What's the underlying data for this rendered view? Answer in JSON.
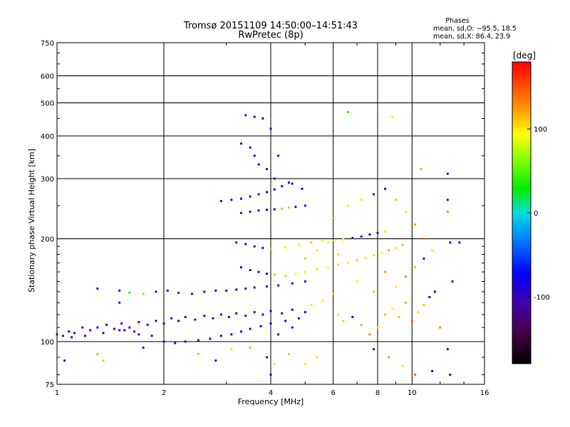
{
  "chart_data": {
    "type": "scatter",
    "title": "Tromsø 20151109 14:50:00–14:51:43",
    "subtitle": "RwPretec (8p)",
    "stats_title": "Phases",
    "stats_line1": "mean, sd,O: −95.5, 18.5",
    "stats_line2": "mean, sd,X:  86.4, 23.9",
    "xlabel": "Frequency [MHz]",
    "ylabel": "Stationary phase Virtual Height [km]",
    "x_scale": "log",
    "y_scale": "log",
    "xlim": [
      1,
      16
    ],
    "ylim": [
      75,
      750
    ],
    "x_ticks": [
      1,
      2,
      4,
      6,
      8,
      10,
      16
    ],
    "y_ticks": [
      75,
      100,
      200,
      300,
      400,
      500,
      600,
      750
    ],
    "grid": true,
    "colorbar": {
      "label": "[deg]",
      "range": [
        -180,
        180
      ],
      "ticks": [
        -100,
        0,
        100
      ]
    },
    "series": [
      {
        "trace": "ordinary_lower",
        "points": [
          [
            1.0,
            105,
            -110
          ],
          [
            1.04,
            104,
            -112
          ],
          [
            1.08,
            107,
            -105
          ],
          [
            1.12,
            106,
            -108
          ],
          [
            1.18,
            110,
            -100
          ],
          [
            1.24,
            108,
            -106
          ],
          [
            1.3,
            110,
            -104
          ],
          [
            1.38,
            112,
            -110
          ],
          [
            1.45,
            109,
            -103
          ],
          [
            1.52,
            113,
            -101
          ],
          [
            1.6,
            110,
            -99
          ],
          [
            1.7,
            114,
            -105
          ],
          [
            1.8,
            112,
            -100
          ],
          [
            1.9,
            115,
            -108
          ],
          [
            2.0,
            113,
            -102
          ],
          [
            2.1,
            117,
            -96
          ],
          [
            2.2,
            115,
            -104
          ],
          [
            2.3,
            118,
            -100
          ],
          [
            2.45,
            116,
            -95
          ],
          [
            2.6,
            119,
            -101
          ],
          [
            2.75,
            117,
            -98
          ],
          [
            2.9,
            120,
            -94
          ],
          [
            3.05,
            118,
            -100
          ],
          [
            3.2,
            121,
            -97
          ],
          [
            3.4,
            119,
            -93
          ],
          [
            3.6,
            122,
            -99
          ],
          [
            3.8,
            120,
            -92
          ],
          [
            4.0,
            123,
            -96
          ],
          [
            4.3,
            121,
            -90
          ],
          [
            4.6,
            124,
            -88
          ],
          [
            5.0,
            122,
            -92
          ]
        ]
      },
      {
        "trace": "ordinary_lower_b",
        "points": [
          [
            1.1,
            103,
            -115
          ],
          [
            1.2,
            104,
            -108
          ],
          [
            1.35,
            106,
            -112
          ],
          [
            1.5,
            108,
            -100
          ],
          [
            1.65,
            107,
            -104
          ],
          [
            1.85,
            104,
            -98
          ],
          [
            2.0,
            100,
            -105
          ],
          [
            2.15,
            99,
            -110
          ],
          [
            2.3,
            100,
            -102
          ],
          [
            2.5,
            101,
            -96
          ],
          [
            2.7,
            102,
            -100
          ],
          [
            2.9,
            104,
            -95
          ],
          [
            3.1,
            105,
            -98
          ],
          [
            3.3,
            107,
            -92
          ],
          [
            3.5,
            109,
            -96
          ],
          [
            3.75,
            111,
            -90
          ],
          [
            4.0,
            113,
            -94
          ],
          [
            4.4,
            115,
            -88
          ],
          [
            4.8,
            117,
            -92
          ]
        ]
      },
      {
        "trace": "sporadic_E",
        "points": [
          [
            1.3,
            143,
            -105
          ],
          [
            1.5,
            141,
            -98
          ],
          [
            1.6,
            139,
            40
          ],
          [
            1.75,
            138,
            60
          ],
          [
            1.9,
            140,
            -100
          ],
          [
            2.05,
            141,
            -95
          ],
          [
            2.2,
            139,
            -102
          ],
          [
            2.4,
            138,
            -98
          ],
          [
            2.6,
            140,
            -92
          ],
          [
            2.8,
            141,
            -100
          ],
          [
            3.0,
            141,
            -96
          ],
          [
            3.2,
            142,
            -90
          ],
          [
            3.4,
            143,
            -94
          ],
          [
            3.6,
            144,
            -88
          ],
          [
            3.9,
            145,
            -92
          ],
          [
            4.2,
            146,
            -85
          ],
          [
            4.6,
            148,
            -90
          ],
          [
            5.0,
            150,
            -86
          ]
        ]
      },
      {
        "trace": "F_trace_mid",
        "points": [
          [
            3.3,
            165,
            -95
          ],
          [
            3.5,
            162,
            -100
          ],
          [
            3.7,
            160,
            -92
          ],
          [
            3.9,
            158,
            -98
          ],
          [
            4.1,
            157,
            60
          ],
          [
            4.4,
            156,
            70
          ],
          [
            4.7,
            158,
            90
          ],
          [
            5.0,
            160,
            100
          ],
          [
            5.4,
            163,
            80
          ],
          [
            5.8,
            165,
            95
          ],
          [
            6.2,
            168,
            105
          ],
          [
            6.6,
            170,
            90
          ],
          [
            7.0,
            173,
            110
          ],
          [
            7.4,
            176,
            100
          ],
          [
            7.8,
            179,
            85
          ],
          [
            8.2,
            182,
            95
          ],
          [
            8.6,
            185,
            120
          ],
          [
            9.0,
            188,
            100
          ],
          [
            9.4,
            192,
            115
          ]
        ]
      },
      {
        "trace": "F_trace_high",
        "points": [
          [
            3.2,
            195,
            -105
          ],
          [
            3.4,
            193,
            -100
          ],
          [
            3.6,
            190,
            -95
          ],
          [
            3.8,
            188,
            -98
          ],
          [
            4.0,
            187,
            60
          ],
          [
            4.4,
            189,
            85
          ],
          [
            4.8,
            192,
            95
          ],
          [
            5.2,
            195,
            110
          ],
          [
            5.6,
            197,
            90
          ],
          [
            6.0,
            198,
            105
          ],
          [
            6.4,
            199,
            95
          ],
          [
            6.8,
            201,
            -100
          ],
          [
            7.2,
            203,
            -96
          ],
          [
            7.6,
            206,
            -92
          ],
          [
            8.0,
            208,
            -98
          ],
          [
            8.4,
            210,
            80
          ]
        ]
      },
      {
        "trace": "F2_upper",
        "points": [
          [
            3.3,
            238,
            -110
          ],
          [
            3.5,
            240,
            -105
          ],
          [
            3.7,
            242,
            -100
          ],
          [
            3.9,
            243,
            -102
          ],
          [
            4.1,
            244,
            -98
          ],
          [
            4.3,
            245,
            60
          ],
          [
            4.5,
            247,
            70
          ],
          [
            4.7,
            248,
            -95
          ],
          [
            5.0,
            250,
            -92
          ],
          [
            2.9,
            258,
            -100
          ],
          [
            3.1,
            260,
            -98
          ],
          [
            3.3,
            262,
            -96
          ],
          [
            3.5,
            266,
            -95
          ],
          [
            3.7,
            270,
            -92
          ],
          [
            3.9,
            274,
            -90
          ],
          [
            4.1,
            279,
            -88
          ],
          [
            4.3,
            285,
            -95
          ],
          [
            4.5,
            292,
            -90
          ]
        ]
      },
      {
        "trace": "spread_high",
        "points": [
          [
            3.4,
            460,
            -105
          ],
          [
            3.6,
            455,
            -100
          ],
          [
            3.8,
            450,
            -98
          ],
          [
            3.3,
            380,
            -110
          ],
          [
            3.5,
            370,
            -105
          ],
          [
            3.6,
            350,
            -100
          ],
          [
            3.7,
            330,
            -96
          ],
          [
            3.9,
            320,
            -100
          ],
          [
            4.0,
            420,
            -98
          ],
          [
            4.2,
            350,
            -95
          ],
          [
            4.1,
            300,
            -102
          ],
          [
            4.6,
            290,
            -98
          ],
          [
            4.9,
            280,
            -96
          ],
          [
            6.6,
            470,
            40
          ],
          [
            8.8,
            455,
            100
          ],
          [
            10.6,
            320,
            120
          ],
          [
            12.6,
            310,
            -100
          ]
        ]
      },
      {
        "trace": "scatter_high_freq",
        "points": [
          [
            6.2,
            120,
            100
          ],
          [
            6.4,
            115,
            110
          ],
          [
            6.8,
            118,
            -90
          ],
          [
            7.2,
            112,
            120
          ],
          [
            7.6,
            105,
            130
          ],
          [
            8.0,
            110,
            100
          ],
          [
            8.4,
            120,
            115
          ],
          [
            8.8,
            125,
            95
          ],
          [
            9.2,
            118,
            110
          ],
          [
            9.6,
            130,
            120
          ],
          [
            10.0,
            115,
            140
          ],
          [
            10.4,
            122,
            100
          ],
          [
            10.8,
            128,
            110
          ],
          [
            11.2,
            135,
            -100
          ],
          [
            11.6,
            140,
            -95
          ],
          [
            12.0,
            110,
            130
          ],
          [
            12.6,
            95,
            -100
          ],
          [
            13.0,
            150,
            -105
          ],
          [
            7.8,
            95,
            -110
          ],
          [
            8.6,
            90,
            120
          ],
          [
            9.4,
            85,
            100
          ],
          [
            10.2,
            80,
            140
          ],
          [
            11.4,
            82,
            -100
          ],
          [
            12.8,
            80,
            -100
          ],
          [
            7.0,
            150,
            100
          ],
          [
            7.8,
            140,
            110
          ],
          [
            8.4,
            160,
            120
          ],
          [
            9.0,
            145,
            100
          ],
          [
            9.6,
            155,
            130
          ],
          [
            10.2,
            165,
            110
          ],
          [
            10.8,
            175,
            -90
          ],
          [
            11.4,
            185,
            100
          ],
          [
            6.0,
            230,
            120
          ],
          [
            6.6,
            250,
            100
          ],
          [
            7.2,
            260,
            80
          ],
          [
            7.8,
            270,
            -100
          ],
          [
            8.4,
            280,
            -95
          ],
          [
            9.0,
            260,
            110
          ],
          [
            9.6,
            240,
            100
          ],
          [
            10.2,
            220,
            120
          ],
          [
            10.8,
            200,
            130
          ],
          [
            12.6,
            260,
            -100
          ],
          [
            12.6,
            240,
            130
          ],
          [
            12.8,
            195,
            -100
          ],
          [
            13.6,
            195,
            -100
          ]
        ]
      },
      {
        "trace": "scatter_low_freq",
        "points": [
          [
            1.05,
            88,
            -100
          ],
          [
            1.3,
            92,
            60
          ],
          [
            1.35,
            88,
            70
          ],
          [
            1.5,
            130,
            -110
          ],
          [
            1.55,
            108,
            -100
          ],
          [
            1.7,
            105,
            -95
          ],
          [
            1.75,
            96,
            -100
          ],
          [
            2.5,
            92,
            60
          ],
          [
            2.8,
            88,
            -100
          ],
          [
            3.1,
            95,
            80
          ],
          [
            3.5,
            96,
            60
          ],
          [
            3.9,
            90,
            -100
          ],
          [
            4.1,
            86,
            100
          ],
          [
            4.5,
            92,
            110
          ],
          [
            5.0,
            86,
            90
          ],
          [
            5.4,
            90,
            100
          ],
          [
            4.0,
            80,
            -100
          ],
          [
            4.2,
            105,
            -95
          ],
          [
            4.6,
            110,
            -90
          ],
          [
            5.2,
            128,
            100
          ],
          [
            5.6,
            132,
            90
          ],
          [
            6.0,
            138,
            110
          ],
          [
            5.0,
            175,
            110
          ],
          [
            5.4,
            185,
            100
          ],
          [
            5.8,
            195,
            90
          ],
          [
            6.2,
            180,
            105
          ]
        ]
      }
    ]
  }
}
